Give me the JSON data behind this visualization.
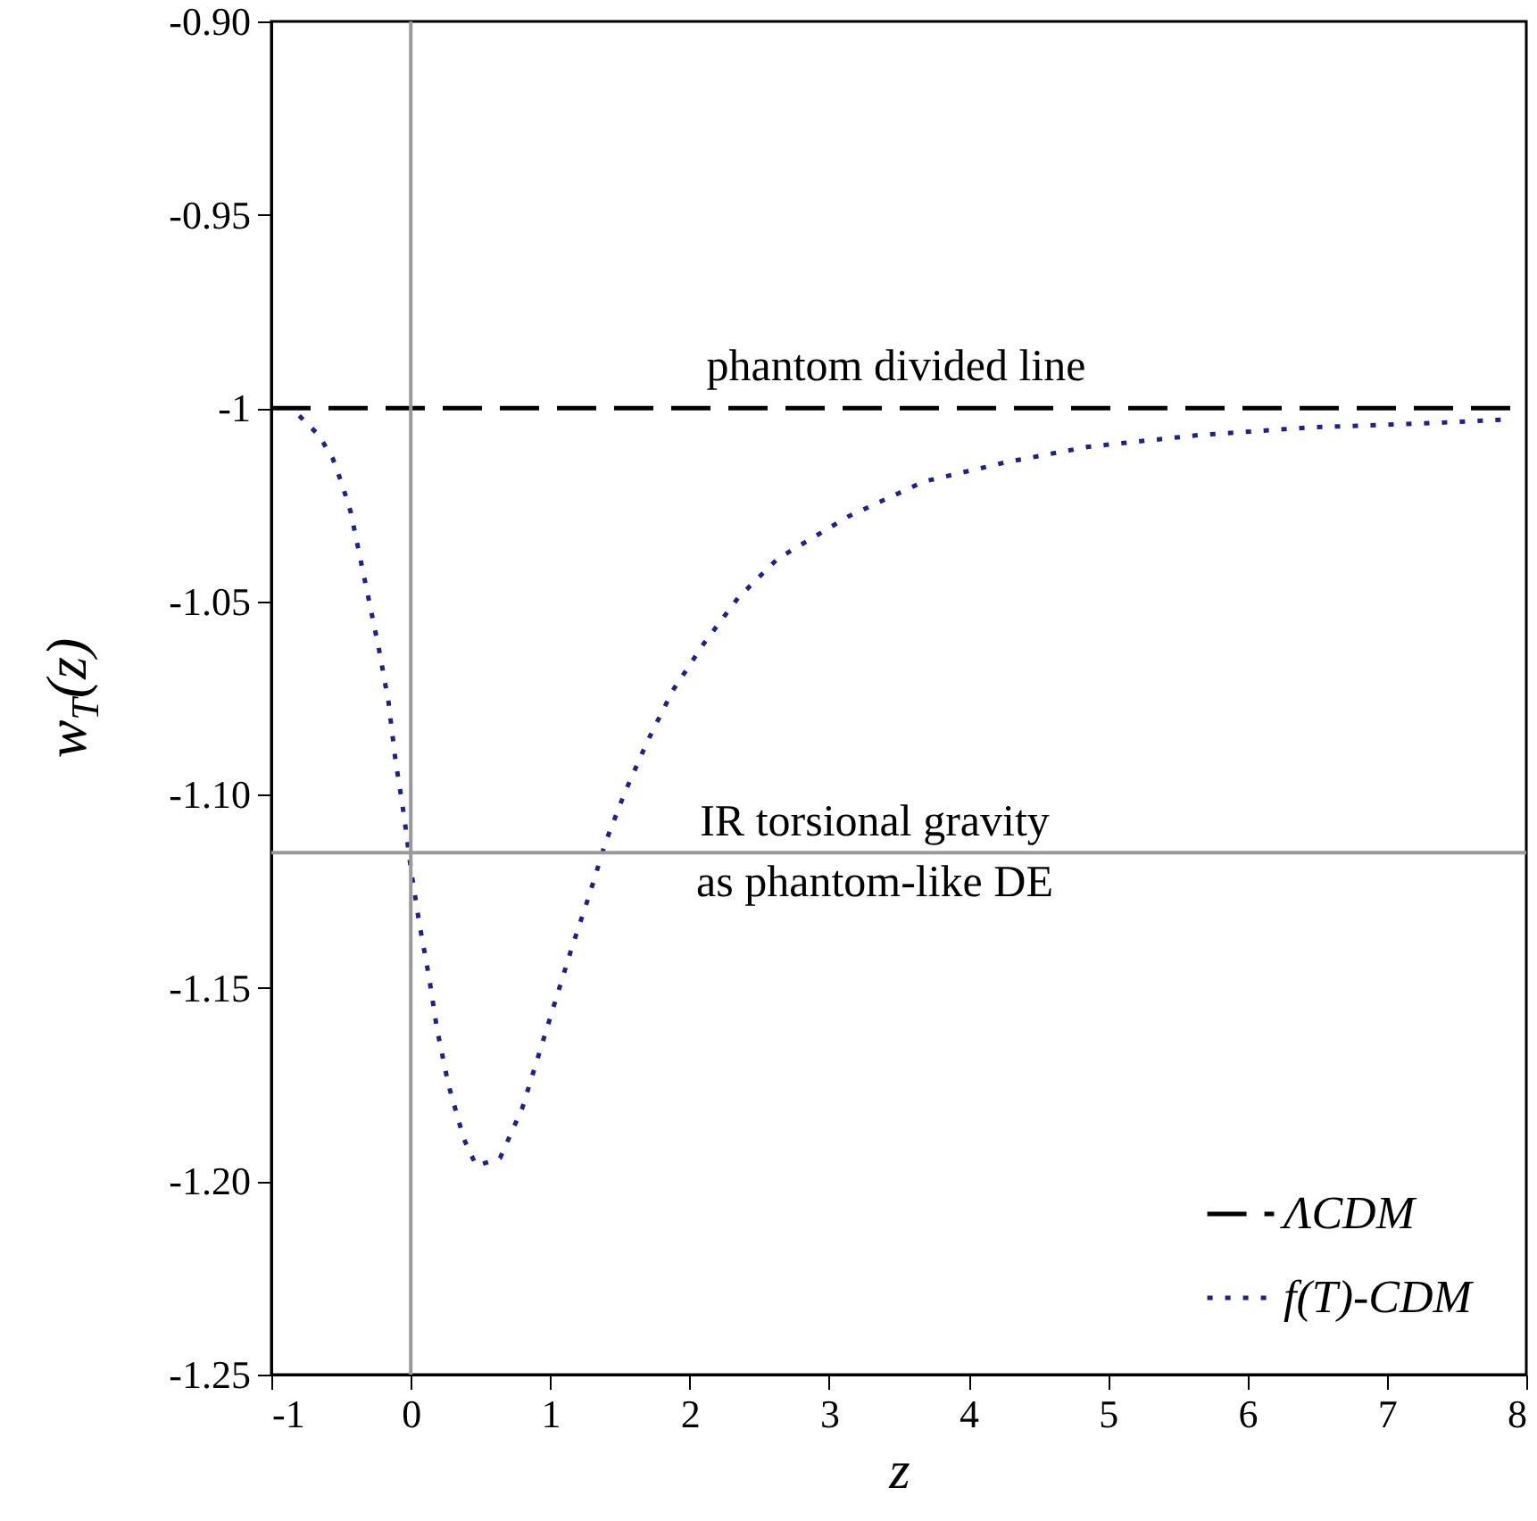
{
  "chart_data": {
    "type": "line",
    "xlabel": "z",
    "ylabel": "w$_{T}$(z)",
    "xlim": [
      -1,
      8
    ],
    "ylim": [
      -1.25,
      -0.9
    ],
    "xticks": [
      -1,
      0,
      1,
      2,
      3,
      4,
      5,
      6,
      7,
      8
    ],
    "yticks": [
      {
        "value": -0.9,
        "label": "-0.90"
      },
      {
        "value": -0.95,
        "label": "-0.95"
      },
      {
        "value": -1,
        "label": "-1"
      },
      {
        "value": -1.05,
        "label": "-1.05"
      },
      {
        "value": -1.1,
        "label": "-1.10"
      },
      {
        "value": -1.15,
        "label": "-1.15"
      },
      {
        "value": -1.2,
        "label": "-1.20"
      },
      {
        "value": -1.25,
        "label": "-1.25"
      }
    ],
    "grid": false,
    "legend": "bottom right",
    "marker": "none",
    "series": [
      {
        "name": "ΛCDM",
        "color": "#000000",
        "line_style": "dashed",
        "x": [
          -1,
          8
        ],
        "values": [
          -1,
          -1
        ]
      },
      {
        "name": "f(T)-CDM",
        "color": "#1f1f8f",
        "line_style": "dotted",
        "x": [
          -0.8,
          -0.66,
          -0.56,
          -0.49,
          -0.43,
          -0.39,
          -0.31,
          -0.23,
          -0.16,
          -0.11,
          -0.05,
          0,
          0.06,
          0.13,
          0.19,
          0.27,
          0.38,
          0.47,
          0.64,
          0.8,
          0.92,
          1.04,
          1.16,
          1.28,
          1.4,
          1.54,
          1.7,
          1.88,
          2.1,
          2.35,
          2.63,
          3.14,
          3.68,
          4.27,
          4.86,
          5.65,
          6.45,
          7.25,
          7.84
        ],
        "values": [
          -1.002,
          -1.007,
          -1.013,
          -1.02,
          -1.027,
          -1.034,
          -1.048,
          -1.062,
          -1.076,
          -1.091,
          -1.105,
          -1.119,
          -1.133,
          -1.147,
          -1.161,
          -1.175,
          -1.189,
          -1.196,
          -1.194,
          -1.181,
          -1.167,
          -1.153,
          -1.139,
          -1.126,
          -1.112,
          -1.099,
          -1.086,
          -1.073,
          -1.061,
          -1.049,
          -1.039,
          -1.028,
          -1.019,
          -1.014,
          -1.01,
          -1.007,
          -1.005,
          -1.004,
          -1.003
        ]
      }
    ],
    "ref_lines": [
      {
        "axis": "x",
        "value": 0,
        "color": "#999999"
      },
      {
        "axis": "y",
        "value": -1.115,
        "color": "#999999"
      }
    ],
    "annotations": [
      "phantom divided line",
      "IR torsional gravity",
      "as phantom-like DE"
    ]
  }
}
